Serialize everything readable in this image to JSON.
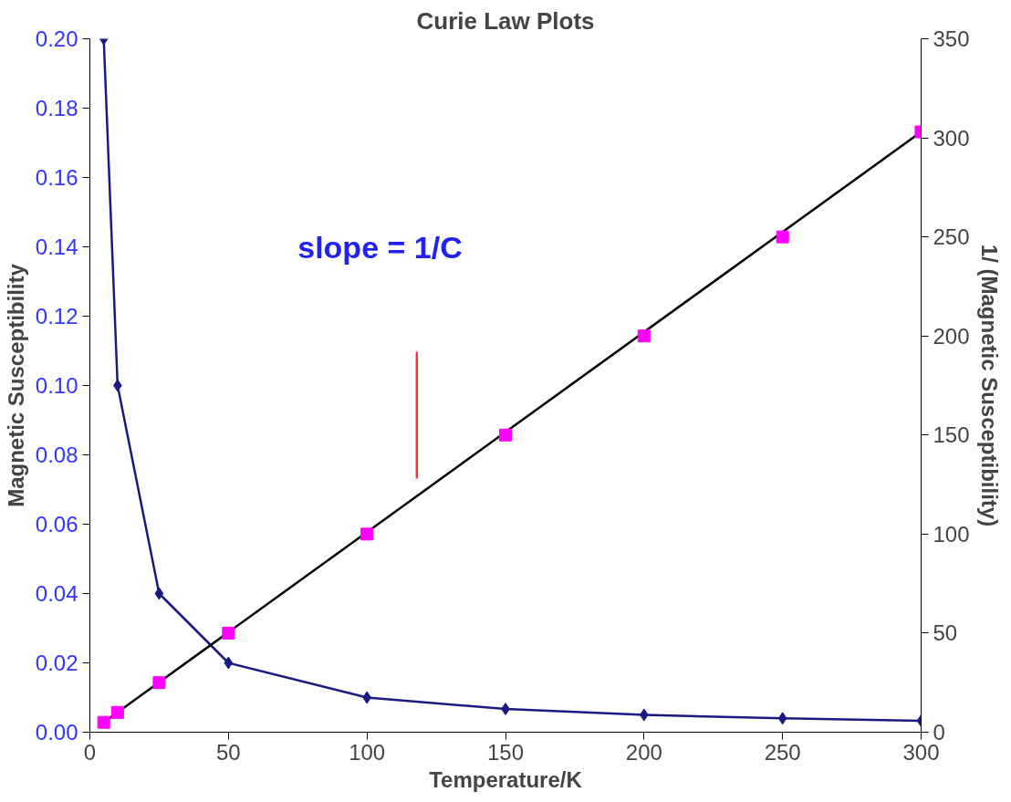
{
  "chart_data": {
    "type": "line",
    "title": "Curie Law Plots",
    "xlabel": "Temperature/K",
    "ylabel": "Magnetic Susceptibility",
    "y2label": "1/ (Magnetic Susceptibility)",
    "x": [
      5,
      10,
      25,
      50,
      100,
      150,
      200,
      250,
      300
    ],
    "series": [
      {
        "marker": "diamond",
        "color": "#1a1a80",
        "values": [
          0.2,
          0.1,
          0.04,
          0.02,
          0.01,
          0.0067,
          0.005,
          0.004,
          0.0033
        ]
      },
      {
        "type": "line",
        "marker": "none",
        "color": "#000000",
        "axis": "y2",
        "x": [
          5,
          300
        ],
        "values": [
          5,
          303
        ]
      },
      {
        "type": "line",
        "marker": "none",
        "color": "#ff3333",
        "axis": "y2",
        "x": [
          118,
          118
        ],
        "values": [
          128,
          192
        ]
      },
      {
        "type": "scatter",
        "marker": "square",
        "color": "#ff00ff",
        "axis": "y2",
        "values": [
          5,
          10,
          25,
          50,
          100,
          150,
          200,
          250,
          303
        ]
      }
    ],
    "annotations": [
      "slope = 1/C"
    ],
    "xlim": [
      0,
      300
    ],
    "xticks": [
      0,
      50,
      100,
      150,
      200,
      250,
      300
    ],
    "ylim": [
      0,
      0.2
    ],
    "yticks": [
      {
        "value": 0,
        "label": "0.00"
      },
      {
        "value": 0.02,
        "label": "0.02"
      },
      {
        "value": 0.04,
        "label": "0.04"
      },
      {
        "value": 0.06,
        "label": "0.06"
      },
      {
        "value": 0.08,
        "label": "0.08"
      },
      {
        "value": 0.1,
        "label": "0.10"
      },
      {
        "value": 0.12,
        "label": "0.12"
      },
      {
        "value": 0.14,
        "label": "0.14"
      },
      {
        "value": 0.16,
        "label": "0.16"
      },
      {
        "value": 0.18,
        "label": "0.18"
      },
      {
        "value": 0.2,
        "label": "0.20"
      }
    ],
    "y2lim": [
      0,
      350
    ],
    "y2ticks": [
      0,
      50,
      100,
      150,
      200,
      250,
      300,
      350
    ],
    "grid": false
  }
}
